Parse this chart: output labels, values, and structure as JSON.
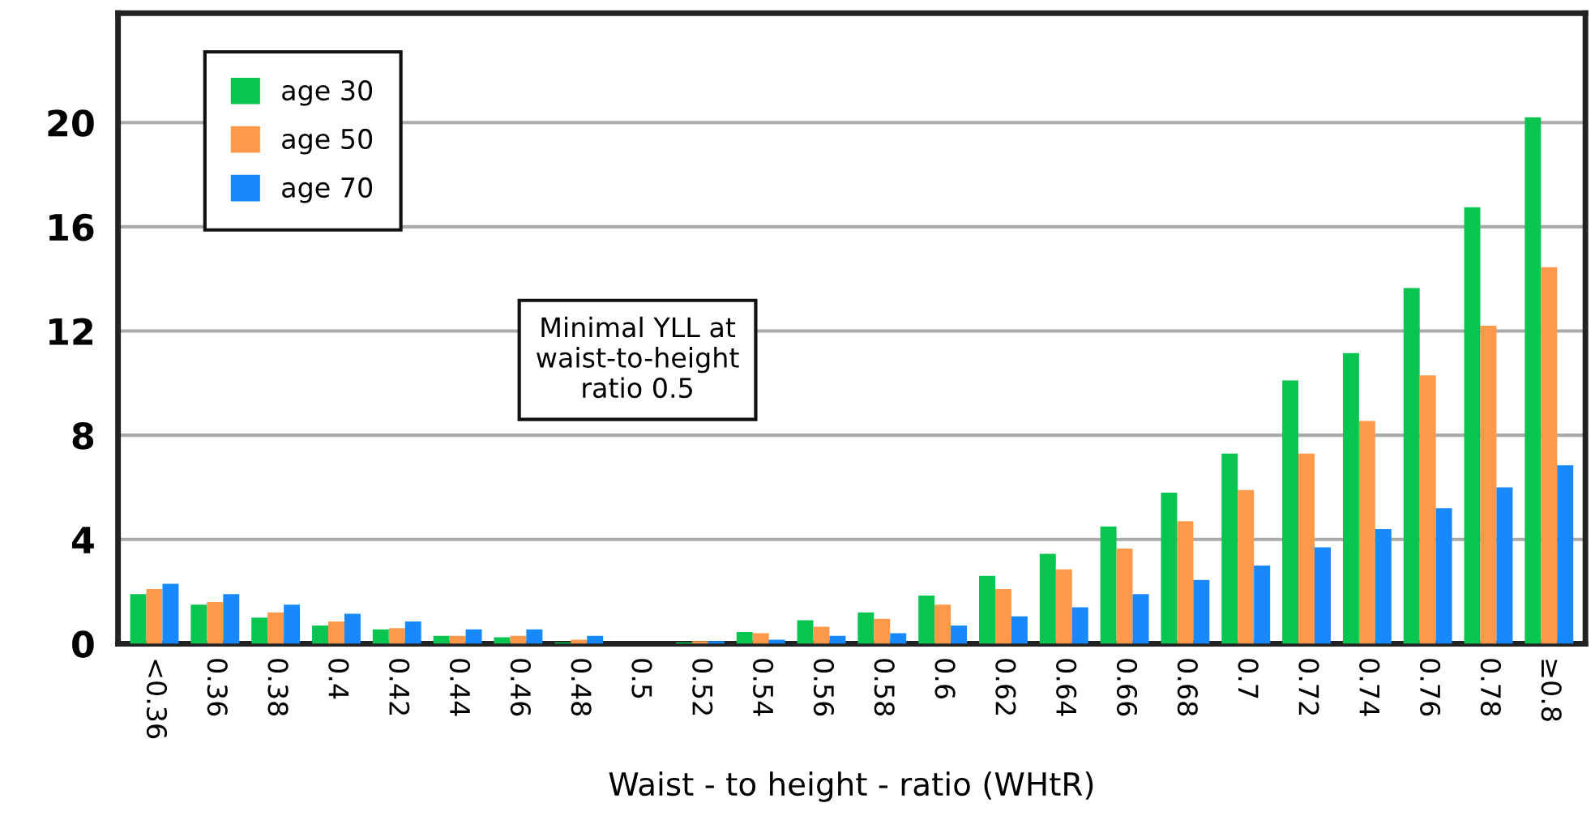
{
  "chart_data": {
    "type": "bar",
    "xlabel": "Waist - to height - ratio (WHtR)",
    "categories": [
      "<0.36",
      "0.36",
      "0.38",
      "0.4",
      "0.42",
      "0.44",
      "0.46",
      "0.48",
      "0.5",
      "0.52",
      "0.54",
      "0.56",
      "0.58",
      "0.6",
      "0.62",
      "0.64",
      "0.66",
      "0.68",
      "0.7",
      "0.72",
      "0.74",
      "0.76",
      "0.78",
      "≥0.8"
    ],
    "series": [
      {
        "name": "age 30",
        "color": "#08c552",
        "values": [
          1.9,
          1.5,
          1.0,
          0.7,
          0.55,
          0.3,
          0.25,
          0.05,
          0,
          0.05,
          0.45,
          0.9,
          1.2,
          1.85,
          2.6,
          3.45,
          4.5,
          5.8,
          7.3,
          10.1,
          11.15,
          13.65,
          16.75,
          20.2
        ]
      },
      {
        "name": "age 50",
        "color": "#fe984b",
        "values": [
          2.1,
          1.6,
          1.2,
          0.85,
          0.6,
          0.3,
          0.3,
          0.15,
          0,
          0.1,
          0.4,
          0.65,
          0.95,
          1.5,
          2.1,
          2.85,
          3.65,
          4.7,
          5.9,
          7.3,
          8.55,
          10.3,
          12.2,
          14.45
        ]
      },
      {
        "name": "age 70",
        "color": "#1789fd",
        "values": [
          2.3,
          1.9,
          1.5,
          1.15,
          0.85,
          0.55,
          0.55,
          0.3,
          0,
          0.1,
          0.15,
          0.3,
          0.4,
          0.7,
          1.05,
          1.4,
          1.9,
          2.45,
          3.0,
          3.7,
          4.4,
          5.2,
          6.0,
          6.85
        ]
      }
    ],
    "annotations": [
      "Minimal YLL at\nwaist-to-height\nratio 0.5"
    ],
    "ylim": [
      0,
      24.2
    ],
    "yticks": [
      0,
      4,
      8,
      12,
      16,
      20
    ],
    "grid": "y",
    "legend": "top left"
  }
}
